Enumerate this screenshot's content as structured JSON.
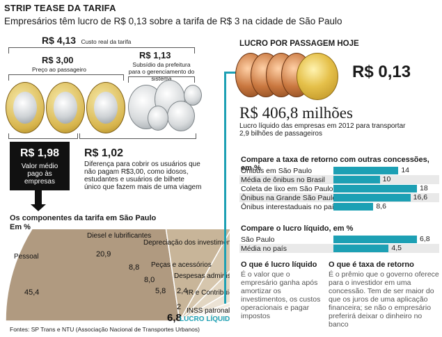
{
  "header": {
    "title": "STRIP TEASE DA TARIFA",
    "subtitle": "Empresários têm lucro de R$ 0,13 sobre a tarifa de R$ 3 na cidade de São Paulo"
  },
  "fare": {
    "total_value": "R$ 4,13",
    "total_label": "Custo real da tarifa",
    "passenger_value": "R$ 3,00",
    "passenger_label": "Preço ao passageiro",
    "subsidy_value": "R$ 1,13",
    "subsidy_label": "Subsídio da prefeitura para o gerenciamento do sistema",
    "avg_value": "R$ 1,98",
    "avg_label": "Valor médio pago às empresas",
    "diff_value": "R$ 1,02",
    "diff_label": "Diferença para cobrir os usuários que não pagam R$3,00, como idosos, estudantes e usuários de bilhete único que fazem mais de uma viagem"
  },
  "profit": {
    "heading": "LUCRO POR PASSAGEM HOJE",
    "per_ticket": "R$ 0,13",
    "total": "R$ 406,8 milhões",
    "total_label": "Lucro líquido das empresas em 2012 para transportar 2,9 bilhões de passageiros"
  },
  "colors": {
    "teal": "#1da0b4",
    "gold": "#d7b44c",
    "copper": "#c9773f",
    "silver": "#cfd3d6",
    "slice_fills": [
      "#b09a80",
      "#c8b599",
      "#d6c6ad",
      "#e2d6c2",
      "#ece3d5",
      "#f3ede3",
      "#f8f5f0",
      "#fbf9f6",
      "#1da0b4"
    ]
  },
  "chart_data": [
    {
      "type": "pie",
      "title": "Os componentes da tarifa em São Paulo",
      "unit": "Em %",
      "categories": [
        "Pessoal",
        "Diesel e lubrificantes",
        "Depreciação dos investimentos",
        "Peças e acessórios",
        "Despesas administrativas",
        "IR e Contribuição Social",
        "INSS patronal",
        "LUCRO LÍQUIDO"
      ],
      "values": [
        45.4,
        20.9,
        8.8,
        8.0,
        5.8,
        2.4,
        2,
        6.8
      ],
      "labels": [
        "45,4",
        "20,9",
        "8,8",
        "8,0",
        "5,8",
        "2,4",
        "2",
        "6,8"
      ],
      "highlight": "LUCRO LÍQUIDO"
    },
    {
      "type": "bar",
      "title": "Compare a taxa de retorno com outras concessões, em %",
      "categories": [
        "Ônibus em São Paulo",
        "Média de ônibus no Brasil",
        "Coleta de lixo em São Paulo",
        "Ônibus na Grande São Paulo",
        "Ônibus interestaduais no país"
      ],
      "values": [
        14,
        10,
        18,
        16.6,
        8.6
      ],
      "labels": [
        "14",
        "10",
        "18",
        "16,6",
        "8,6"
      ],
      "xlim": [
        0,
        18
      ]
    },
    {
      "type": "bar",
      "title": "Compare o lucro líquido, em %",
      "categories": [
        "São Paulo",
        "Média no país"
      ],
      "values": [
        6.8,
        4.5
      ],
      "labels": [
        "6,8",
        "4,5"
      ],
      "xlim": [
        0,
        6.8
      ]
    }
  ],
  "definitions": {
    "profit_heading": "O que é lucro líquido",
    "profit_text": "É o valor que o empresário ganha após amortizar os investimentos, os custos operacionais e pagar impostos",
    "return_heading": "O que é taxa de retorno",
    "return_text": "É o prêmio que o governo oferece para o investidor em uma concessão. Tem de ser maior do que os juros de uma aplicação financeira; se não o empresário preferirá deixar o dinheiro no banco"
  },
  "source": "Fontes: SP Trans e NTU (Associação Nacional de Transportes Urbanos)"
}
